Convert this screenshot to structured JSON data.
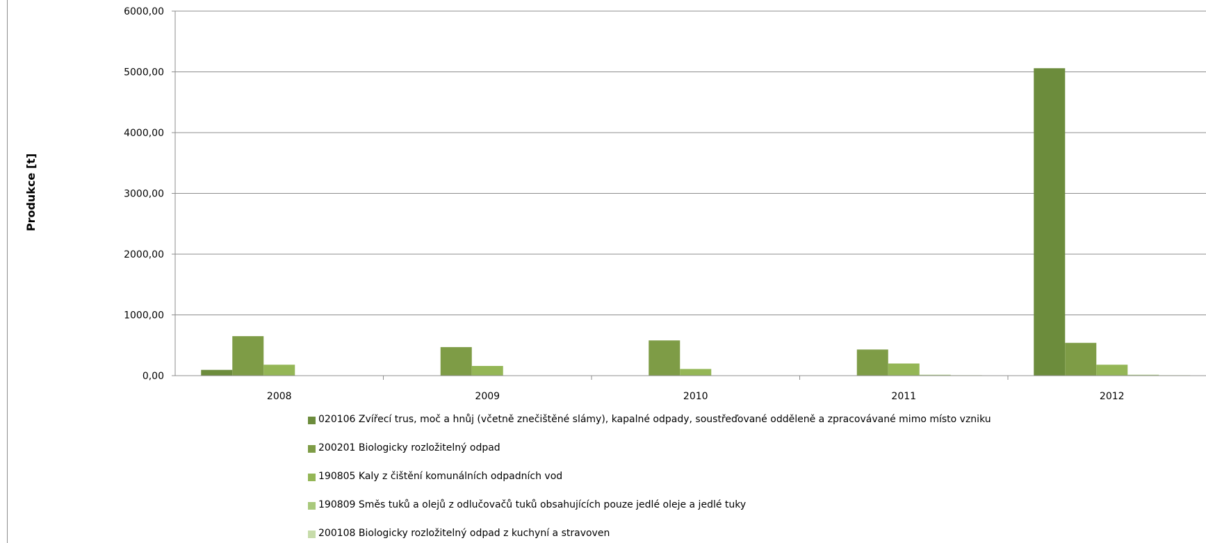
{
  "chart_data": {
    "type": "bar",
    "categories": [
      "2008",
      "2009",
      "2010",
      "2011",
      "2012"
    ],
    "ylabel": "Produkce [t]",
    "ylim": [
      0,
      6000
    ],
    "yticks": [
      "0,00",
      "1000,00",
      "2000,00",
      "3000,00",
      "4000,00",
      "5000,00",
      "6000,00"
    ],
    "ytick_values": [
      0,
      1000,
      2000,
      3000,
      4000,
      5000,
      6000
    ],
    "grid": true,
    "legend_position": "bottom",
    "series": [
      {
        "name": "020106 Zvířecí trus, moč a hnůj (včetně znečištěné slámy), kapalné odpady, soustřeďované odděleně a zpracovávané mimo místo vzniku",
        "color": "#6c8c3c",
        "values": [
          95,
          0,
          0,
          0,
          5060
        ]
      },
      {
        "name": "200201 Biologicky rozložitelný odpad",
        "color": "#7e9c46",
        "values": [
          650,
          470,
          580,
          430,
          540
        ]
      },
      {
        "name": "190805 Kaly z čištění komunálních odpadních vod",
        "color": "#94b656",
        "values": [
          180,
          160,
          110,
          200,
          180
        ]
      },
      {
        "name": "190809 Směs tuků a olejů z odlučovačů tuků obsahujících pouze jedlé oleje a jedlé tuky",
        "color": "#a9c97c",
        "values": [
          0,
          0,
          0,
          15,
          15
        ]
      },
      {
        "name": "200108 Biologicky rozložitelný odpad z kuchyní a stravoven",
        "color": "#c7dcaa",
        "values": [
          0,
          0,
          0,
          8,
          8
        ]
      }
    ]
  }
}
